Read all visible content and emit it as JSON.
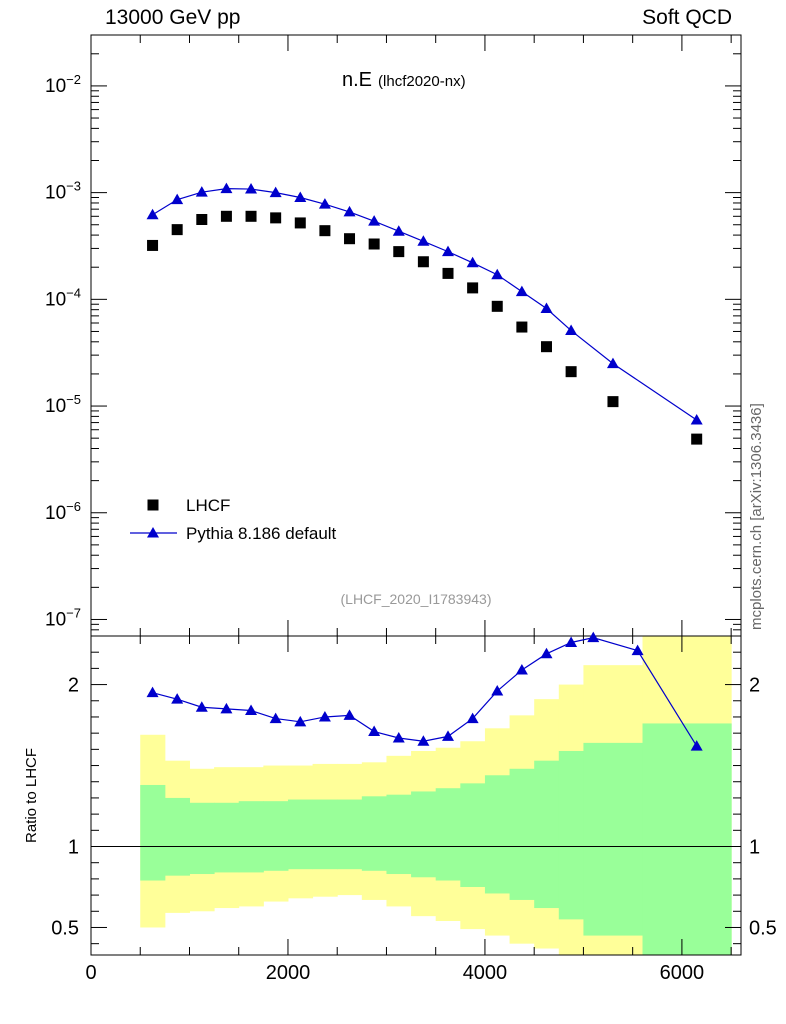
{
  "header": {
    "left": "13000 GeV pp",
    "right": "Soft QCD"
  },
  "side_label": "mcplots.cern.ch [arXiv:1306.3436]",
  "chart_data": [
    {
      "type": "scatter",
      "title_main": "n.E",
      "title_sub": "(lhcf2020-nx)",
      "watermark": "(LHCF_2020_I1783943)",
      "yscale": "log",
      "xlim": [
        0,
        6600
      ],
      "ylim": [
        7e-08,
        0.03
      ],
      "y_ticks": [
        {
          "v": 1e-07,
          "mant": "10",
          "exp": "−7"
        },
        {
          "v": 1e-06,
          "mant": "10",
          "exp": "−6"
        },
        {
          "v": 1e-05,
          "mant": "10",
          "exp": "−5"
        },
        {
          "v": 0.0001,
          "mant": "10",
          "exp": "−4"
        },
        {
          "v": 0.001,
          "mant": "10",
          "exp": "−3"
        },
        {
          "v": 0.01,
          "mant": "10",
          "exp": "−2"
        }
      ],
      "legend_position": "lower-left",
      "series": [
        {
          "name": "LHCF",
          "marker": "square",
          "color": "#000000",
          "x": [
            625,
            875,
            1125,
            1375,
            1625,
            1875,
            2125,
            2375,
            2625,
            2875,
            3125,
            3375,
            3625,
            3875,
            4125,
            4375,
            4625,
            4875,
            5300,
            6150
          ],
          "y": [
            0.00032,
            0.00045,
            0.00056,
            0.0006,
            0.0006,
            0.00058,
            0.00052,
            0.00044,
            0.00037,
            0.00033,
            0.00028,
            0.000225,
            0.000175,
            0.000128,
            8.6e-05,
            5.5e-05,
            3.6e-05,
            2.1e-05,
            1.1e-05,
            4.9e-06
          ]
        },
        {
          "name": "Pythia 8.186 default",
          "marker": "triangle",
          "color": "#0000cc",
          "x": [
            625,
            875,
            1125,
            1375,
            1625,
            1875,
            2125,
            2375,
            2625,
            2875,
            3125,
            3375,
            3625,
            3875,
            4125,
            4375,
            4625,
            4875,
            5300,
            6150
          ],
          "y": [
            0.00062,
            0.00086,
            0.00101,
            0.00109,
            0.00108,
            0.001,
            0.0009,
            0.00078,
            0.00066,
            0.00054,
            0.000435,
            0.00035,
            0.00028,
            0.00022,
            0.00017,
            0.000118,
            8.2e-05,
            5.1e-05,
            2.5e-05,
            7.4e-06
          ]
        }
      ]
    },
    {
      "type": "line",
      "ylabel": "Ratio to LHCF",
      "xlim": [
        0,
        6600
      ],
      "ylim": [
        0.33,
        2.3
      ],
      "x_ticks": [
        0,
        2000,
        4000,
        6000
      ],
      "y_ticks": [
        0.5,
        1,
        2
      ],
      "y_tick_labels": [
        "0.5",
        "1",
        "2"
      ],
      "reference_line": 1,
      "bands": {
        "edges": [
          500,
          750,
          1000,
          1250,
          1500,
          1750,
          2000,
          2250,
          2500,
          2750,
          3000,
          3250,
          3500,
          3750,
          4000,
          4250,
          4500,
          4750,
          5000,
          5600,
          6500
        ],
        "yellow_low": [
          0.5,
          0.59,
          0.6,
          0.62,
          0.63,
          0.66,
          0.68,
          0.69,
          0.7,
          0.67,
          0.63,
          0.57,
          0.54,
          0.49,
          0.45,
          0.4,
          0.37,
          0.33,
          0.33,
          0.33
        ],
        "yellow_high": [
          1.69,
          1.53,
          1.48,
          1.49,
          1.49,
          1.5,
          1.5,
          1.51,
          1.51,
          1.52,
          1.56,
          1.59,
          1.61,
          1.65,
          1.73,
          1.81,
          1.91,
          2.0,
          2.12,
          2.3
        ],
        "green_low": [
          0.79,
          0.82,
          0.83,
          0.84,
          0.84,
          0.85,
          0.86,
          0.86,
          0.86,
          0.85,
          0.83,
          0.81,
          0.79,
          0.75,
          0.71,
          0.67,
          0.62,
          0.55,
          0.45,
          0.33
        ],
        "green_high": [
          1.38,
          1.3,
          1.27,
          1.27,
          1.28,
          1.28,
          1.29,
          1.29,
          1.29,
          1.31,
          1.32,
          1.34,
          1.36,
          1.39,
          1.44,
          1.48,
          1.53,
          1.59,
          1.64,
          1.76
        ]
      },
      "series": [
        {
          "name": "Pythia 8.186 default",
          "color": "#0000cc",
          "x": [
            625,
            875,
            1125,
            1375,
            1625,
            1875,
            2125,
            2375,
            2625,
            2875,
            3125,
            3375,
            3625,
            3875,
            4125,
            4375,
            4625,
            4875,
            5100,
            5550,
            6150
          ],
          "y": [
            1.95,
            1.91,
            1.86,
            1.85,
            1.84,
            1.79,
            1.77,
            1.8,
            1.81,
            1.71,
            1.67,
            1.65,
            1.68,
            1.79,
            1.96,
            2.09,
            2.19,
            2.26,
            2.29,
            2.21,
            1.62
          ]
        }
      ]
    }
  ]
}
